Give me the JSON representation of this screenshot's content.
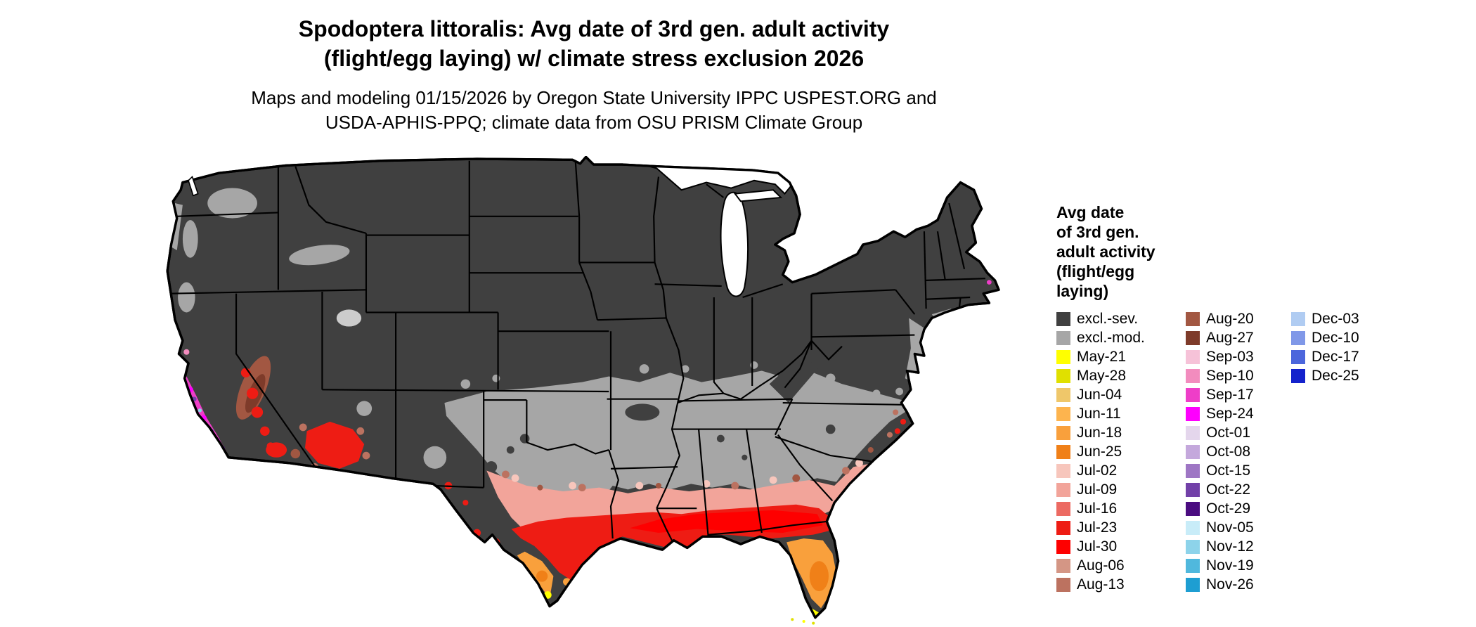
{
  "title": {
    "line1": "Spodoptera littoralis: Avg date of 3rd gen. adult activity",
    "line2": "(flight/egg laying) w/ climate stress exclusion 2026"
  },
  "subtitle": {
    "line1": "Maps and modeling 01/15/2026 by Oregon State University IPPC USPEST.ORG and",
    "line2": "USDA-APHIS-PPQ; climate data from OSU PRISM Climate Group"
  },
  "legend": {
    "title_lines": [
      "Avg date",
      "of 3rd gen.",
      "adult activity",
      "(flight/egg",
      "laying)"
    ],
    "columns": [
      [
        {
          "label": "excl.-sev.",
          "color": "#404040"
        },
        {
          "label": "excl.-mod.",
          "color": "#a6a6a6"
        },
        {
          "label": "May-21",
          "color": "#ffff00"
        },
        {
          "label": "May-28",
          "color": "#e0e000"
        },
        {
          "label": "Jun-04",
          "color": "#efc76a"
        },
        {
          "label": "Jun-11",
          "color": "#fdb44e"
        },
        {
          "label": "Jun-18",
          "color": "#f9a03c"
        },
        {
          "label": "Jun-25",
          "color": "#f08018"
        },
        {
          "label": "Jul-02",
          "color": "#f7c6bc"
        },
        {
          "label": "Jul-09",
          "color": "#f2a49a"
        },
        {
          "label": "Jul-16",
          "color": "#ec6a62"
        },
        {
          "label": "Jul-23",
          "color": "#ee1c14"
        },
        {
          "label": "Jul-30",
          "color": "#fe0000"
        },
        {
          "label": "Aug-06",
          "color": "#d49685"
        },
        {
          "label": "Aug-13",
          "color": "#bc7260"
        }
      ],
      [
        {
          "label": "Aug-20",
          "color": "#a25742"
        },
        {
          "label": "Aug-27",
          "color": "#7e3b2a"
        },
        {
          "label": "Sep-03",
          "color": "#f6c2d8"
        },
        {
          "label": "Sep-10",
          "color": "#f28cbe"
        },
        {
          "label": "Sep-17",
          "color": "#ee3ec8"
        },
        {
          "label": "Sep-24",
          "color": "#fe00fe"
        },
        {
          "label": "Oct-01",
          "color": "#e4d6ec"
        },
        {
          "label": "Oct-08",
          "color": "#c4a8dc"
        },
        {
          "label": "Oct-15",
          "color": "#9e76c4"
        },
        {
          "label": "Oct-22",
          "color": "#7240a8"
        },
        {
          "label": "Oct-29",
          "color": "#4a0c80"
        },
        {
          "label": "Nov-05",
          "color": "#c8ecf8"
        },
        {
          "label": "Nov-12",
          "color": "#8dd3ea"
        },
        {
          "label": "Nov-19",
          "color": "#50b8dd"
        },
        {
          "label": "Nov-26",
          "color": "#1e9ed2"
        }
      ],
      [
        {
          "label": "Dec-03",
          "color": "#b0ccf2"
        },
        {
          "label": "Dec-10",
          "color": "#8098e8"
        },
        {
          "label": "Dec-17",
          "color": "#4c66dc"
        },
        {
          "label": "Dec-25",
          "color": "#1422cc"
        }
      ]
    ]
  },
  "map": {
    "colors": {
      "excluded_severe": "#404040",
      "excluded_moderate": "#a6a6a6",
      "outline": "#000000",
      "water": "#ffffff"
    }
  }
}
